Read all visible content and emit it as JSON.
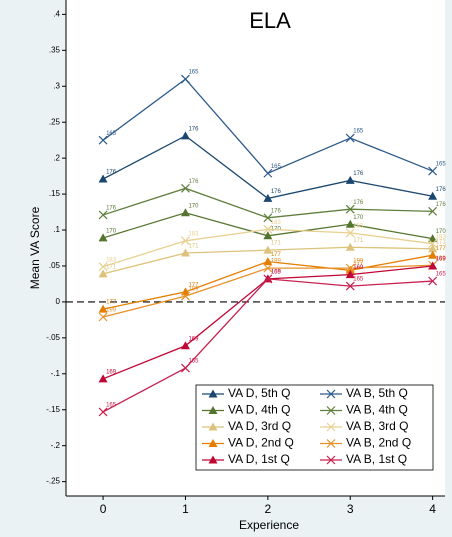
{
  "chart_data": {
    "type": "line",
    "title": "ELA",
    "x_label": "Experience",
    "y_label": "Mean VA Score",
    "x": [
      0,
      1,
      2,
      3,
      4
    ],
    "xlim": [
      -0.45,
      4.15
    ],
    "xticks": [
      0,
      1,
      2,
      3,
      4
    ],
    "ylim": [
      -0.27,
      0.42
    ],
    "yticks": [
      {
        "value": -0.25,
        "label": "-.25"
      },
      {
        "value": -0.2,
        "label": "-.2"
      },
      {
        "value": -0.15,
        "label": "-.15"
      },
      {
        "value": -0.1,
        "label": "-.1"
      },
      {
        "value": -0.05,
        "label": "-.05"
      },
      0,
      {
        "value": 0.05,
        "label": ".05"
      },
      {
        "value": 0.1,
        "label": ".1"
      },
      {
        "value": 0.15,
        "label": ".15"
      },
      {
        "value": 0.2,
        "label": ".2"
      },
      {
        "value": 0.25,
        "label": ".25"
      },
      {
        "value": 0.3,
        "label": ".3"
      },
      {
        "value": 0.35,
        "label": ".35"
      },
      {
        "value": 0.4,
        "label": ".4"
      }
    ],
    "grid": false,
    "reference_line": 0,
    "legend_position": "lower-right",
    "series": [
      {
        "name": "VA D, 5th Q",
        "color": "#1a476f",
        "marker": "triangle",
        "values": [
          0.171,
          0.231,
          0.144,
          0.169,
          0.147
        ],
        "point_labels": [
          "176",
          "176",
          "176",
          "176",
          "176"
        ]
      },
      {
        "name": "VA B, 5th Q",
        "color": "#2d5a8a",
        "marker": "x",
        "values": [
          0.225,
          0.31,
          0.179,
          0.228,
          0.182
        ],
        "point_labels": [
          "165",
          "165",
          "165",
          "165",
          "165"
        ]
      },
      {
        "name": "VA D, 4th Q",
        "color": "#55752f",
        "marker": "triangle",
        "values": [
          0.089,
          0.124,
          0.092,
          0.108,
          0.088
        ],
        "point_labels": [
          "170",
          "170",
          "170",
          "170",
          "170"
        ]
      },
      {
        "name": "VA B, 4th Q",
        "color": "#607f3c",
        "marker": "x",
        "values": [
          0.121,
          0.158,
          0.117,
          0.129,
          0.126
        ],
        "point_labels": [
          "176",
          "176",
          "176",
          "176",
          "176"
        ]
      },
      {
        "name": "VA D, 3rd Q",
        "color": "#dcc27a",
        "marker": "triangle",
        "values": [
          0.039,
          0.068,
          0.072,
          0.076,
          0.074
        ],
        "point_labels": [
          "171",
          "171",
          "171",
          "171",
          "171"
        ]
      },
      {
        "name": "VA B, 3rd Q",
        "color": "#e8d090",
        "marker": "x",
        "values": [
          0.049,
          0.085,
          0.101,
          0.096,
          0.081
        ],
        "point_labels": [
          "183",
          "183",
          "183",
          "183",
          "183"
        ]
      },
      {
        "name": "VA D, 2nd Q",
        "color": "#e37e00",
        "marker": "triangle",
        "values": [
          -0.01,
          0.014,
          0.056,
          0.044,
          0.065
        ],
        "point_labels": [
          "177",
          "177",
          "177",
          "177",
          "177"
        ]
      },
      {
        "name": "VA B, 2nd Q",
        "color": "#e8902a",
        "marker": "x",
        "values": [
          -0.021,
          0.008,
          0.047,
          0.047,
          0.051
        ],
        "point_labels": [
          "199",
          "199",
          "199",
          "199",
          "199"
        ]
      },
      {
        "name": "VA D, 1st Q",
        "color": "#c10534",
        "marker": "triangle",
        "values": [
          -0.107,
          -0.061,
          0.032,
          0.038,
          0.05
        ],
        "point_labels": [
          "169",
          "169",
          "169",
          "169",
          "169"
        ]
      },
      {
        "name": "VA B, 1st Q",
        "color": "#c8204f",
        "marker": "x",
        "values": [
          -0.153,
          -0.092,
          0.032,
          0.022,
          0.029
        ],
        "point_labels": [
          "165",
          "165",
          "165",
          "165",
          "165"
        ]
      }
    ]
  }
}
